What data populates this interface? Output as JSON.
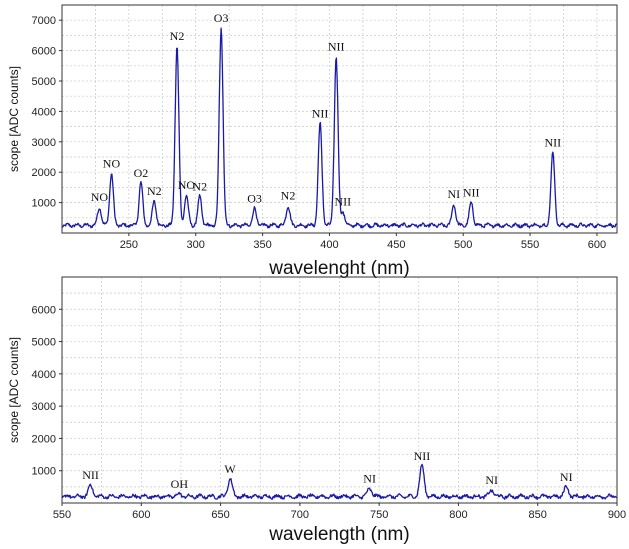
{
  "chart_data": [
    {
      "type": "line",
      "xlabel": "wavelenght (nm)",
      "ylabel": "scope [ADC counts]",
      "xlim": [
        200,
        615
      ],
      "ylim": [
        0,
        7500
      ],
      "xticks": [
        250,
        300,
        350,
        400,
        450,
        500,
        550,
        600
      ],
      "yticks": [
        1000,
        2000,
        3000,
        4000,
        5000,
        6000,
        7000
      ],
      "grid": true,
      "line_color": "#1a1aa6",
      "series": [
        {
          "baseline": 250,
          "peaks": [
            {
              "x": 228,
              "y": 850,
              "label": "NO"
            },
            {
              "x": 237,
              "y": 1950,
              "label": "NO"
            },
            {
              "x": 259,
              "y": 1650,
              "label": "O2"
            },
            {
              "x": 269,
              "y": 1050,
              "label": "N2"
            },
            {
              "x": 286,
              "y": 6150,
              "label": "N2"
            },
            {
              "x": 293,
              "y": 1250,
              "label": "NO"
            },
            {
              "x": 303,
              "y": 1200,
              "label": "N2"
            },
            {
              "x": 319,
              "y": 6750,
              "label": "O3"
            },
            {
              "x": 344,
              "y": 800,
              "label": "O3"
            },
            {
              "x": 369,
              "y": 900,
              "label": "N2"
            },
            {
              "x": 393,
              "y": 3600,
              "label": "NII"
            },
            {
              "x": 405,
              "y": 5800,
              "label": "NII"
            },
            {
              "x": 410,
              "y": 700,
              "label": "NII"
            },
            {
              "x": 493,
              "y": 950,
              "label": "NI"
            },
            {
              "x": 506,
              "y": 1000,
              "label": "NII"
            },
            {
              "x": 567,
              "y": 2650,
              "label": "NII"
            }
          ]
        }
      ]
    },
    {
      "type": "line",
      "xlabel": "wavelength (nm)",
      "ylabel": "scope [ADC counts]",
      "xlim": [
        550,
        900
      ],
      "ylim": [
        0,
        7000
      ],
      "xticks": [
        550,
        600,
        650,
        700,
        750,
        800,
        850,
        900
      ],
      "yticks": [
        1000,
        2000,
        3000,
        4000,
        5000,
        6000
      ],
      "grid": true,
      "line_color": "#1a1aa6",
      "series": [
        {
          "baseline": 200,
          "peaks": [
            {
              "x": 568,
              "y": 550,
              "label": "NII"
            },
            {
              "x": 624,
              "y": 280,
              "label": "OH"
            },
            {
              "x": 656,
              "y": 750,
              "label": "W"
            },
            {
              "x": 744,
              "y": 450,
              "label": "NI"
            },
            {
              "x": 777,
              "y": 1150,
              "label": "NII"
            },
            {
              "x": 821,
              "y": 400,
              "label": "NI"
            },
            {
              "x": 868,
              "y": 500,
              "label": "NI"
            }
          ]
        }
      ]
    }
  ]
}
